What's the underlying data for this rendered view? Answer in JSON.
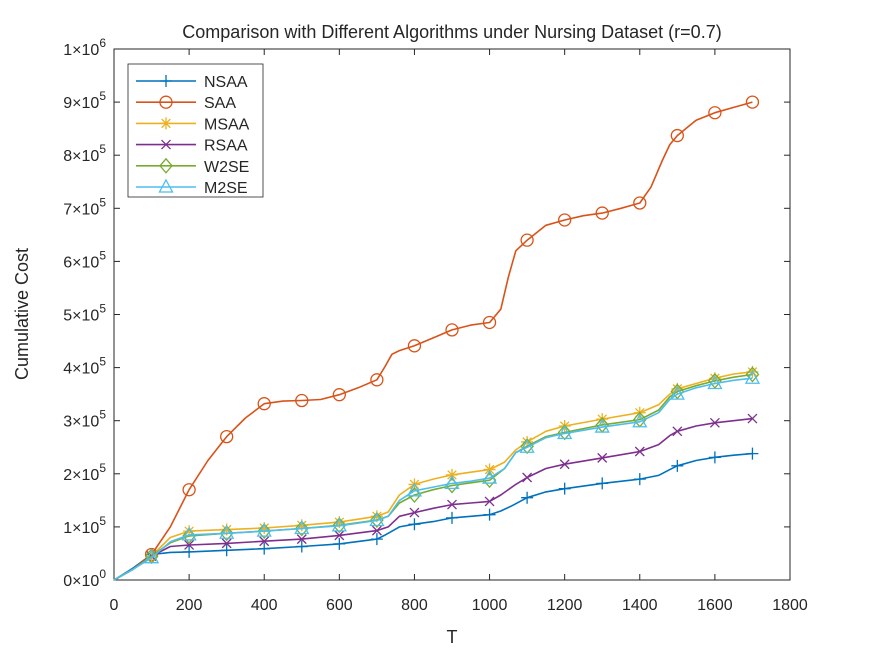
{
  "chart_data": {
    "type": "line",
    "title": "Comparison with Different Algorithms under Nursing Dataset (r=0.7)",
    "xlabel": "T",
    "ylabel": "Cumulative Cost",
    "xlim": [
      0,
      1800
    ],
    "ylim": [
      0,
      1000000
    ],
    "x_ticks": [
      0,
      200,
      400,
      600,
      800,
      1000,
      1200,
      1400,
      1600,
      1800
    ],
    "x_tick_labels": [
      "0",
      "200",
      "400",
      "600",
      "800",
      "1000",
      "1200",
      "1400",
      "1600",
      "1800"
    ],
    "y_ticks": [
      0,
      100000,
      200000,
      300000,
      400000,
      500000,
      600000,
      700000,
      800000,
      900000,
      1000000
    ],
    "y_tick_labels": [
      {
        "mant": "0",
        "exp": "0"
      },
      {
        "mant": "1",
        "exp": "5"
      },
      {
        "mant": "2",
        "exp": "5"
      },
      {
        "mant": "3",
        "exp": "5"
      },
      {
        "mant": "4",
        "exp": "5"
      },
      {
        "mant": "5",
        "exp": "5"
      },
      {
        "mant": "6",
        "exp": "5"
      },
      {
        "mant": "7",
        "exp": "5"
      },
      {
        "mant": "8",
        "exp": "5"
      },
      {
        "mant": "9",
        "exp": "5"
      },
      {
        "mant": "1",
        "exp": "6"
      }
    ],
    "times_symbol": "×10",
    "legend_position": "top-left",
    "marker_x": [
      100,
      200,
      300,
      400,
      500,
      600,
      700,
      800,
      900,
      1000,
      1100,
      1200,
      1300,
      1400,
      1500,
      1600,
      1700
    ],
    "series": [
      {
        "name": "NSAA",
        "color": "#0072BD",
        "marker": "plus",
        "x": [
          0,
          50,
          100,
          150,
          200,
          300,
          400,
          500,
          600,
          700,
          720,
          760,
          800,
          850,
          900,
          950,
          1000,
          1030,
          1060,
          1100,
          1150,
          1200,
          1300,
          1400,
          1450,
          1480,
          1500,
          1550,
          1600,
          1650,
          1700
        ],
        "y": [
          0,
          22000,
          48000,
          52000,
          53000,
          56000,
          59000,
          63000,
          68000,
          77000,
          84000,
          100000,
          105000,
          110000,
          117000,
          120000,
          123000,
          130000,
          140000,
          155000,
          166000,
          172000,
          182000,
          190000,
          197000,
          208000,
          215000,
          225000,
          231000,
          235000,
          238000
        ]
      },
      {
        "name": "SAA",
        "color": "#D95319",
        "marker": "circle",
        "x": [
          0,
          50,
          100,
          150,
          200,
          250,
          300,
          350,
          400,
          450,
          500,
          550,
          600,
          650,
          700,
          720,
          740,
          760,
          800,
          850,
          900,
          950,
          1000,
          1030,
          1050,
          1070,
          1100,
          1150,
          1200,
          1250,
          1300,
          1350,
          1400,
          1430,
          1460,
          1480,
          1500,
          1550,
          1600,
          1650,
          1700
        ],
        "y": [
          0,
          20000,
          48000,
          100000,
          170000,
          225000,
          270000,
          305000,
          332000,
          337000,
          338000,
          340000,
          349000,
          362000,
          377000,
          400000,
          425000,
          432000,
          441000,
          456000,
          471000,
          480000,
          485000,
          510000,
          570000,
          620000,
          640000,
          668000,
          678000,
          686000,
          691000,
          700000,
          710000,
          740000,
          790000,
          820000,
          837000,
          866000,
          880000,
          890000,
          900000
        ]
      },
      {
        "name": "MSAA",
        "color": "#EDB120",
        "marker": "asterisk",
        "x": [
          0,
          50,
          100,
          150,
          200,
          300,
          400,
          500,
          600,
          700,
          730,
          760,
          800,
          850,
          900,
          950,
          1000,
          1040,
          1070,
          1100,
          1150,
          1200,
          1300,
          1400,
          1450,
          1480,
          1500,
          1550,
          1600,
          1650,
          1700
        ],
        "y": [
          0,
          20000,
          45000,
          80000,
          92000,
          95000,
          98000,
          103000,
          109000,
          120000,
          128000,
          160000,
          180000,
          190000,
          198000,
          203000,
          208000,
          222000,
          245000,
          260000,
          280000,
          290000,
          303000,
          315000,
          330000,
          350000,
          360000,
          370000,
          380000,
          388000,
          392000
        ]
      },
      {
        "name": "RSAA",
        "color": "#7E2F8E",
        "marker": "cross",
        "x": [
          0,
          50,
          100,
          150,
          200,
          300,
          400,
          500,
          600,
          700,
          730,
          760,
          800,
          850,
          900,
          950,
          1000,
          1030,
          1070,
          1100,
          1150,
          1200,
          1300,
          1400,
          1450,
          1480,
          1500,
          1550,
          1600,
          1650,
          1700
        ],
        "y": [
          0,
          20000,
          45000,
          63000,
          66000,
          69000,
          73000,
          77000,
          84000,
          93000,
          100000,
          120000,
          127000,
          135000,
          142000,
          145000,
          148000,
          160000,
          180000,
          193000,
          210000,
          218000,
          230000,
          242000,
          255000,
          272000,
          280000,
          290000,
          296000,
          300000,
          304000
        ]
      },
      {
        "name": "W2SE",
        "color": "#77AC30",
        "marker": "diamond",
        "x": [
          0,
          50,
          100,
          150,
          200,
          300,
          400,
          500,
          600,
          700,
          730,
          760,
          800,
          850,
          900,
          950,
          1000,
          1040,
          1070,
          1100,
          1150,
          1200,
          1300,
          1400,
          1450,
          1480,
          1500,
          1550,
          1600,
          1650,
          1700
        ],
        "y": [
          0,
          20000,
          45000,
          70000,
          83000,
          88000,
          92000,
          97000,
          103000,
          113000,
          120000,
          145000,
          160000,
          170000,
          178000,
          183000,
          188000,
          210000,
          240000,
          252000,
          270000,
          278000,
          292000,
          302000,
          320000,
          345000,
          355000,
          366000,
          375000,
          382000,
          387000
        ]
      },
      {
        "name": "M2SE",
        "color": "#4DBEEE",
        "marker": "triangle",
        "x": [
          0,
          50,
          100,
          150,
          200,
          300,
          400,
          500,
          600,
          700,
          730,
          760,
          800,
          850,
          900,
          950,
          1000,
          1040,
          1070,
          1100,
          1150,
          1200,
          1300,
          1400,
          1450,
          1480,
          1500,
          1550,
          1600,
          1650,
          1700
        ],
        "y": [
          0,
          20000,
          42000,
          72000,
          85000,
          88000,
          92000,
          97000,
          102000,
          112000,
          120000,
          150000,
          168000,
          175000,
          182000,
          186000,
          192000,
          210000,
          240000,
          250000,
          268000,
          276000,
          288000,
          298000,
          315000,
          340000,
          350000,
          362000,
          370000,
          376000,
          380000
        ]
      }
    ]
  }
}
